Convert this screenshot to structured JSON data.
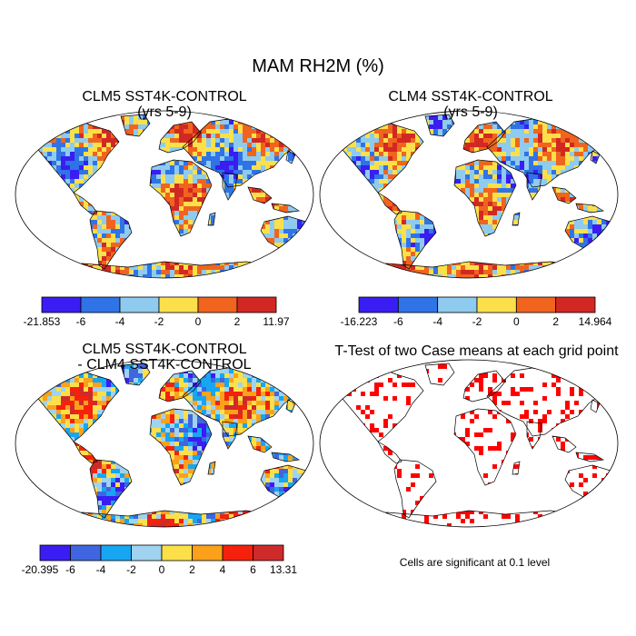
{
  "title": "MAM RH2M (%)",
  "panels": [
    {
      "title_lines": [
        "CLM5 SST4K-CONTROL",
        "(yrs 5-9)"
      ],
      "colorbar": {
        "colors": [
          "#3a1df2",
          "#2f73e6",
          "#8ecbee",
          "#fbe04a",
          "#f0641e",
          "#d22823"
        ],
        "labels": [
          "-21.853",
          "-6",
          "-4",
          "-2",
          "0",
          "2",
          "11.97"
        ]
      }
    },
    {
      "title_lines": [
        "CLM4 SST4K-CONTROL",
        "(yrs 5-9)"
      ],
      "colorbar": {
        "colors": [
          "#3a1df2",
          "#2f73e6",
          "#8ecbee",
          "#fbe04a",
          "#f0641e",
          "#d22823"
        ],
        "labels": [
          "-16.223",
          "-6",
          "-4",
          "-2",
          "0",
          "2",
          "14.964"
        ]
      }
    },
    {
      "title_lines": [
        "CLM5 SST4K-CONTROL",
        "- CLM4 SST4K-CONTROL"
      ],
      "colorbar": {
        "colors": [
          "#3a1df2",
          "#3f66e0",
          "#17a6f2",
          "#9fd3ef",
          "#fbe04a",
          "#fba11a",
          "#f5210c",
          "#cf2a2a"
        ],
        "labels": [
          "-20.395",
          "-6",
          "-4",
          "-2",
          "0",
          "2",
          "4",
          "6",
          "13.31"
        ]
      }
    },
    {
      "title_lines": [
        "T-Test of two Case means at each grid point"
      ],
      "note": "Cells are significant at 0.1 level",
      "significant_color": "#ff0000"
    }
  ]
}
